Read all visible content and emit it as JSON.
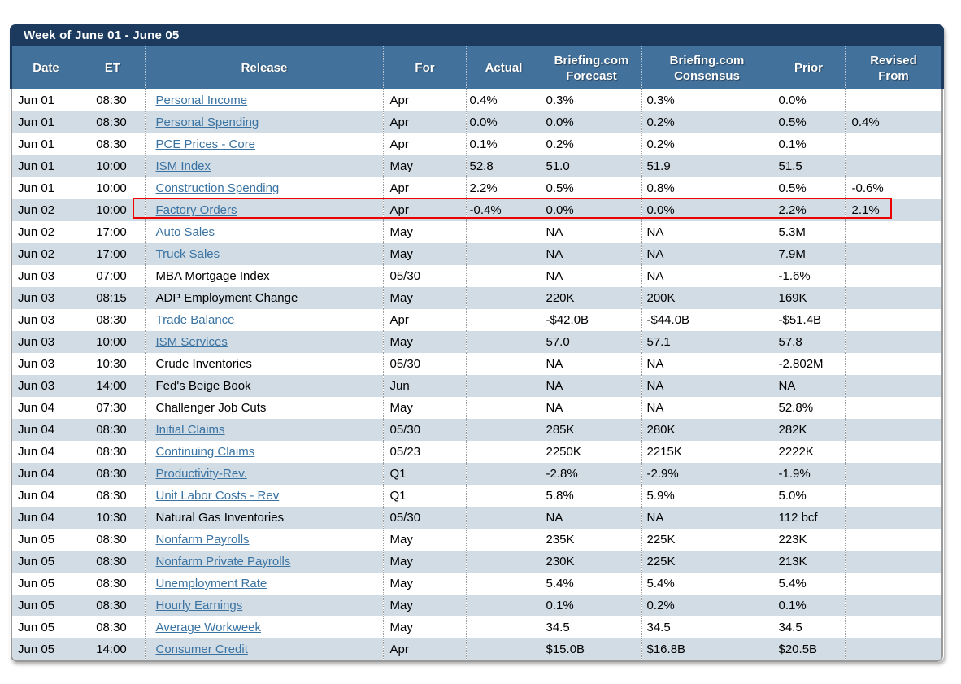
{
  "title": "Week of June 01 - June 05",
  "columns": [
    {
      "key": "date",
      "label": "Date"
    },
    {
      "key": "et",
      "label": "ET"
    },
    {
      "key": "release",
      "label": "Release"
    },
    {
      "key": "for",
      "label": "For"
    },
    {
      "key": "actual",
      "label": "Actual"
    },
    {
      "key": "forecast",
      "label": "Briefing.com\nForecast"
    },
    {
      "key": "consensus",
      "label": "Briefing.com\nConsensus"
    },
    {
      "key": "prior",
      "label": "Prior"
    },
    {
      "key": "revised",
      "label": "Revised\nFrom"
    }
  ],
  "rows": [
    {
      "date": "Jun 01",
      "et": "08:30",
      "release": "Personal Income",
      "link": true,
      "for": "Apr",
      "actual": "0.4%",
      "forecast": "0.3%",
      "consensus": "0.3%",
      "prior": "0.0%",
      "revised": ""
    },
    {
      "date": "Jun 01",
      "et": "08:30",
      "release": "Personal Spending",
      "link": true,
      "for": "Apr",
      "actual": "0.0%",
      "forecast": "0.0%",
      "consensus": "0.2%",
      "prior": "0.5%",
      "revised": "0.4%"
    },
    {
      "date": "Jun 01",
      "et": "08:30",
      "release": "PCE Prices - Core",
      "link": true,
      "for": "Apr",
      "actual": "0.1%",
      "forecast": "0.2%",
      "consensus": "0.2%",
      "prior": "0.1%",
      "revised": ""
    },
    {
      "date": "Jun 01",
      "et": "10:00",
      "release": "ISM Index",
      "link": true,
      "for": "May",
      "actual": "52.8",
      "forecast": "51.0",
      "consensus": "51.9",
      "prior": "51.5",
      "revised": ""
    },
    {
      "date": "Jun 01",
      "et": "10:00",
      "release": "Construction Spending",
      "link": true,
      "for": "Apr",
      "actual": "2.2%",
      "forecast": "0.5%",
      "consensus": "0.8%",
      "prior": "0.5%",
      "revised": "-0.6%"
    },
    {
      "date": "Jun 02",
      "et": "10:00",
      "release": "Factory Orders",
      "link": true,
      "for": "Apr",
      "actual": "-0.4%",
      "forecast": "0.0%",
      "consensus": "0.0%",
      "prior": "2.2%",
      "revised": "2.1%"
    },
    {
      "date": "Jun 02",
      "et": "17:00",
      "release": "Auto Sales",
      "link": true,
      "for": "May",
      "actual": "",
      "forecast": "NA",
      "consensus": "NA",
      "prior": "5.3M",
      "revised": ""
    },
    {
      "date": "Jun 02",
      "et": "17:00",
      "release": "Truck Sales",
      "link": true,
      "for": "May",
      "actual": "",
      "forecast": "NA",
      "consensus": "NA",
      "prior": "7.9M",
      "revised": ""
    },
    {
      "date": "Jun 03",
      "et": "07:00",
      "release": "MBA Mortgage Index",
      "link": false,
      "for": "05/30",
      "actual": "",
      "forecast": "NA",
      "consensus": "NA",
      "prior": "-1.6%",
      "revised": ""
    },
    {
      "date": "Jun 03",
      "et": "08:15",
      "release": "ADP Employment Change",
      "link": false,
      "for": "May",
      "actual": "",
      "forecast": "220K",
      "consensus": "200K",
      "prior": "169K",
      "revised": ""
    },
    {
      "date": "Jun 03",
      "et": "08:30",
      "release": "Trade Balance",
      "link": true,
      "for": "Apr",
      "actual": "",
      "forecast": "-$42.0B",
      "consensus": "-$44.0B",
      "prior": "-$51.4B",
      "revised": ""
    },
    {
      "date": "Jun 03",
      "et": "10:00",
      "release": "ISM Services",
      "link": true,
      "for": "May",
      "actual": "",
      "forecast": "57.0",
      "consensus": "57.1",
      "prior": "57.8",
      "revised": ""
    },
    {
      "date": "Jun 03",
      "et": "10:30",
      "release": "Crude Inventories",
      "link": false,
      "for": "05/30",
      "actual": "",
      "forecast": "NA",
      "consensus": "NA",
      "prior": "-2.802M",
      "revised": ""
    },
    {
      "date": "Jun 03",
      "et": "14:00",
      "release": "Fed's Beige Book",
      "link": false,
      "for": "Jun",
      "actual": "",
      "forecast": "NA",
      "consensus": "NA",
      "prior": "NA",
      "revised": ""
    },
    {
      "date": "Jun 04",
      "et": "07:30",
      "release": "Challenger Job Cuts",
      "link": false,
      "for": "May",
      "actual": "",
      "forecast": "NA",
      "consensus": "NA",
      "prior": "52.8%",
      "revised": ""
    },
    {
      "date": "Jun 04",
      "et": "08:30",
      "release": "Initial Claims",
      "link": true,
      "for": "05/30",
      "actual": "",
      "forecast": "285K",
      "consensus": "280K",
      "prior": "282K",
      "revised": ""
    },
    {
      "date": "Jun 04",
      "et": "08:30",
      "release": "Continuing Claims",
      "link": true,
      "for": "05/23",
      "actual": "",
      "forecast": "2250K",
      "consensus": "2215K",
      "prior": "2222K",
      "revised": ""
    },
    {
      "date": "Jun 04",
      "et": "08:30",
      "release": "Productivity-Rev.",
      "link": true,
      "for": "Q1",
      "actual": "",
      "forecast": "-2.8%",
      "consensus": "-2.9%",
      "prior": "-1.9%",
      "revised": ""
    },
    {
      "date": "Jun 04",
      "et": "08:30",
      "release": "Unit Labor Costs - Rev",
      "link": true,
      "for": "Q1",
      "actual": "",
      "forecast": "5.8%",
      "consensus": "5.9%",
      "prior": "5.0%",
      "revised": ""
    },
    {
      "date": "Jun 04",
      "et": "10:30",
      "release": "Natural Gas Inventories",
      "link": false,
      "for": "05/30",
      "actual": "",
      "forecast": "NA",
      "consensus": "NA",
      "prior": "112 bcf",
      "revised": ""
    },
    {
      "date": "Jun 05",
      "et": "08:30",
      "release": "Nonfarm Payrolls",
      "link": true,
      "for": "May",
      "actual": "",
      "forecast": "235K",
      "consensus": "225K",
      "prior": "223K",
      "revised": ""
    },
    {
      "date": "Jun 05",
      "et": "08:30",
      "release": "Nonfarm Private Payrolls",
      "link": true,
      "for": "May",
      "actual": "",
      "forecast": "230K",
      "consensus": "225K",
      "prior": "213K",
      "revised": ""
    },
    {
      "date": "Jun 05",
      "et": "08:30",
      "release": "Unemployment Rate",
      "link": true,
      "for": "May",
      "actual": "",
      "forecast": "5.4%",
      "consensus": "5.4%",
      "prior": "5.4%",
      "revised": ""
    },
    {
      "date": "Jun 05",
      "et": "08:30",
      "release": "Hourly Earnings",
      "link": true,
      "for": "May",
      "actual": "",
      "forecast": "0.1%",
      "consensus": "0.2%",
      "prior": "0.1%",
      "revised": ""
    },
    {
      "date": "Jun 05",
      "et": "08:30",
      "release": "Average Workweek",
      "link": true,
      "for": "May",
      "actual": "",
      "forecast": "34.5",
      "consensus": "34.5",
      "prior": "34.5",
      "revised": ""
    },
    {
      "date": "Jun 05",
      "et": "14:00",
      "release": "Consumer Credit",
      "link": true,
      "for": "Apr",
      "actual": "",
      "forecast": "$15.0B",
      "consensus": "$16.8B",
      "prior": "$20.5B",
      "revised": ""
    }
  ],
  "highlight": {
    "release": "Factory Orders",
    "row_index": 5,
    "color": "#ee0000"
  },
  "colors": {
    "title_bar": "#1b3a5e",
    "header_bg": "#42719b",
    "header_text": "#ffffff",
    "alt_row_bg": "#d1dce5",
    "link": "#3a73a2",
    "body_text": "#000000",
    "outer_border": "#999999",
    "highlight_border": "#ee0000"
  }
}
